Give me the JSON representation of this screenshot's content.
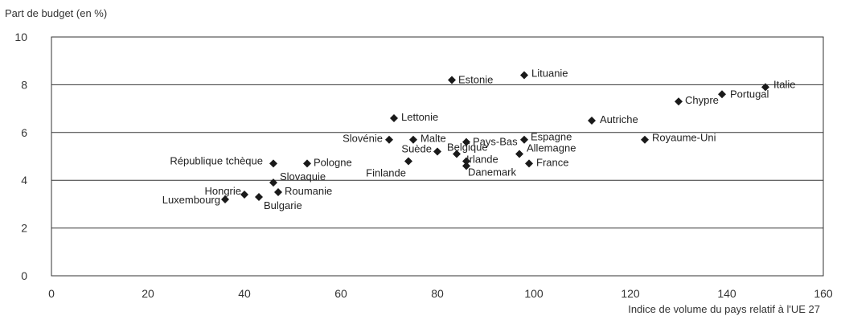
{
  "chart_data": {
    "type": "scatter",
    "title": "",
    "ylabel": "Part de budget (en %)",
    "xlabel": "Indice de volume du pays relatif à l'UE 27",
    "xlim": [
      0,
      160
    ],
    "ylim": [
      0,
      10
    ],
    "xticks": [
      0,
      20,
      40,
      60,
      80,
      100,
      120,
      140,
      160
    ],
    "yticks": [
      0,
      2,
      4,
      6,
      8,
      10
    ],
    "grid": "horizontal",
    "points": [
      {
        "label": "Estonie",
        "x": 83,
        "y": 8.2
      },
      {
        "label": "Lituanie",
        "x": 98,
        "y": 8.4
      },
      {
        "label": "Italie",
        "x": 148,
        "y": 7.9
      },
      {
        "label": "Portugal",
        "x": 139,
        "y": 7.6
      },
      {
        "label": "Chypre",
        "x": 130,
        "y": 7.3
      },
      {
        "label": "Lettonie",
        "x": 71,
        "y": 6.6
      },
      {
        "label": "Autriche",
        "x": 112,
        "y": 6.5
      },
      {
        "label": "Slovénie",
        "x": 70,
        "y": 5.7
      },
      {
        "label": "Malte",
        "x": 75,
        "y": 5.7
      },
      {
        "label": "Pays-Bas",
        "x": 86,
        "y": 5.6
      },
      {
        "label": "Espagne",
        "x": 98,
        "y": 5.7
      },
      {
        "label": "Royaume-Uni",
        "x": 123,
        "y": 5.7
      },
      {
        "label": "Suède",
        "x": 80,
        "y": 5.2
      },
      {
        "label": "Belgique",
        "x": 84,
        "y": 5.1
      },
      {
        "label": "Allemagne",
        "x": 97,
        "y": 5.1
      },
      {
        "label": "République tchèque",
        "x": 46,
        "y": 4.7
      },
      {
        "label": "Pologne",
        "x": 53,
        "y": 4.7
      },
      {
        "label": "Finlande",
        "x": 74,
        "y": 4.8
      },
      {
        "label": "Irlande",
        "x": 86,
        "y": 4.8
      },
      {
        "label": "France",
        "x": 99,
        "y": 4.7
      },
      {
        "label": "Danemark",
        "x": 86,
        "y": 4.6
      },
      {
        "label": "Slovaquie",
        "x": 46,
        "y": 3.9
      },
      {
        "label": "Hongrie",
        "x": 40,
        "y": 3.4
      },
      {
        "label": "Roumanie",
        "x": 47,
        "y": 3.5
      },
      {
        "label": "Luxembourg",
        "x": 36,
        "y": 3.2
      },
      {
        "label": "Bulgarie",
        "x": 43,
        "y": 3.3
      }
    ]
  }
}
